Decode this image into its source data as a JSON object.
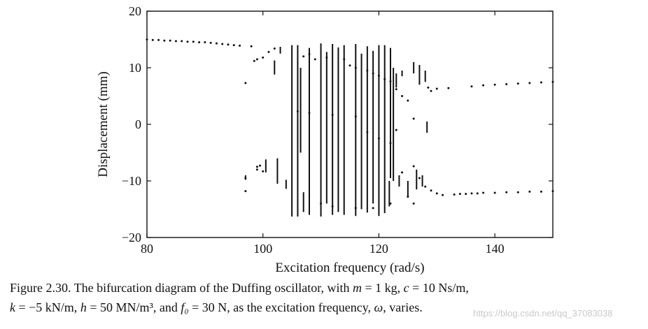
{
  "chart_data": {
    "type": "scatter",
    "title": "",
    "xlabel": "Excitation frequency (rad/s)",
    "ylabel": "Displacement (mm)",
    "xlim": [
      80,
      150
    ],
    "ylim": [
      -20,
      20
    ],
    "x_ticks": [
      "80",
      "100",
      "120",
      "140"
    ],
    "x_tick_values": [
      80,
      100,
      120,
      140
    ],
    "y_ticks": [
      "20",
      "10",
      "0",
      "−10",
      "−20"
    ],
    "y_tick_values": [
      20,
      10,
      0,
      -10,
      -20
    ],
    "grid": false,
    "legend": "none",
    "marker_color": "#111111",
    "series": [
      {
        "name": "",
        "points": [
          [
            80,
            15.0
          ],
          [
            81,
            14.9
          ],
          [
            82,
            14.9
          ],
          [
            83,
            14.8
          ],
          [
            84,
            14.8
          ],
          [
            85,
            14.7
          ],
          [
            86,
            14.7
          ],
          [
            87,
            14.6
          ],
          [
            88,
            14.6
          ],
          [
            89,
            14.5
          ],
          [
            90,
            14.5
          ],
          [
            91,
            14.4
          ],
          [
            92,
            14.3
          ],
          [
            93,
            14.2
          ],
          [
            94,
            14.1
          ],
          [
            95,
            14.0
          ],
          [
            96,
            13.9
          ],
          [
            97,
            7.3
          ],
          [
            97,
            -9.5
          ],
          [
            97,
            -11.8
          ],
          [
            98,
            13.8
          ],
          [
            98.5,
            11.2
          ],
          [
            99,
            11.5
          ],
          [
            99,
            -7.5
          ],
          [
            99,
            -8.0
          ],
          [
            99.5,
            -7.3
          ],
          [
            100,
            -8.3
          ],
          [
            100,
            11.8
          ],
          [
            101,
            12.8
          ],
          [
            102,
            13.4
          ],
          [
            107,
            12.0
          ],
          [
            108,
            12.4
          ],
          [
            109,
            11.5
          ],
          [
            111,
            11.8
          ],
          [
            114,
            11.5
          ],
          [
            115,
            10.4
          ],
          [
            116,
            10.0
          ],
          [
            118,
            9.5
          ],
          [
            119,
            9.0
          ],
          [
            120,
            8.6
          ],
          [
            121,
            8.0
          ],
          [
            122,
            7.6
          ],
          [
            123,
            6.2
          ],
          [
            124,
            5.0
          ],
          [
            125,
            4.2
          ],
          [
            110,
            -14.0
          ],
          [
            112,
            -14.5
          ],
          [
            116,
            -14.8
          ],
          [
            119,
            -14.8
          ],
          [
            122,
            -14.0
          ],
          [
            124,
            -8.5
          ],
          [
            125,
            -12.8
          ],
          [
            106,
            2.3
          ],
          [
            108,
            2.0
          ],
          [
            112,
            1.7
          ],
          [
            116,
            1.4
          ],
          [
            118,
            -1.4
          ],
          [
            120,
            -2.5
          ],
          [
            122,
            -3.3
          ],
          [
            123,
            -1.0
          ],
          [
            126,
            -7.4
          ],
          [
            127,
            -9.5
          ],
          [
            126,
            1.0
          ],
          [
            126,
            -14.0
          ],
          [
            128.5,
            6.5
          ],
          [
            129,
            5.9
          ],
          [
            130,
            6.3
          ],
          [
            132,
            6.4
          ],
          [
            128,
            -11.0
          ],
          [
            129,
            -11.7
          ],
          [
            130,
            -12.2
          ],
          [
            136,
            6.7
          ],
          [
            138,
            6.9
          ],
          [
            140,
            7.0
          ],
          [
            142,
            7.1
          ],
          [
            144,
            7.2
          ],
          [
            146,
            7.3
          ],
          [
            148,
            7.4
          ],
          [
            150,
            7.5
          ],
          [
            131,
            -12.5
          ],
          [
            133,
            -12.4
          ],
          [
            134,
            -12.3
          ],
          [
            135,
            -12.3
          ],
          [
            136,
            -12.2
          ],
          [
            137,
            -12.2
          ],
          [
            138,
            -12.1
          ],
          [
            140,
            -12.1
          ],
          [
            142,
            -12.0
          ],
          [
            144,
            -12.0
          ],
          [
            146,
            -11.9
          ],
          [
            148,
            -11.9
          ],
          [
            150,
            -11.8
          ]
        ],
        "segments": [
          [
            97,
            -9.0,
            -9.8
          ],
          [
            100.5,
            -6.2,
            -8.5
          ],
          [
            102,
            8.8,
            11.3
          ],
          [
            102.5,
            -6.0,
            -10.5
          ],
          [
            103,
            13.7,
            12.5
          ],
          [
            104,
            -9.8,
            -11.4
          ],
          [
            105,
            -16.3,
            14.0
          ],
          [
            106,
            -16.3,
            14.0
          ],
          [
            106.5,
            -5.0,
            10.0
          ],
          [
            107,
            -12.0,
            -15.5
          ],
          [
            108,
            -16.0,
            13.5
          ],
          [
            110,
            -16.3,
            14.3
          ],
          [
            111,
            -14.0,
            12.8
          ],
          [
            112,
            -16.0,
            14.2
          ],
          [
            113,
            -15.5,
            13.6
          ],
          [
            114,
            -16.0,
            14.0
          ],
          [
            116,
            -16.2,
            14.2
          ],
          [
            117,
            -15.0,
            12.5
          ],
          [
            118,
            -15.6,
            13.8
          ],
          [
            119,
            -14.0,
            13.0
          ],
          [
            120,
            -16.2,
            14.0
          ],
          [
            121,
            -15.7,
            14.0
          ],
          [
            122,
            -9.5,
            13.5
          ],
          [
            121.8,
            -14.5,
            -10.0
          ],
          [
            122.5,
            -10.0,
            10.0
          ],
          [
            123,
            6.5,
            9.0
          ],
          [
            123.5,
            -9.0,
            -11.0
          ],
          [
            124,
            8.5,
            9.5
          ],
          [
            125,
            -10.0,
            -12.8
          ],
          [
            126,
            9.0,
            11.0
          ],
          [
            126.5,
            -8.0,
            -11.5
          ],
          [
            127,
            7.0,
            10.5
          ],
          [
            127.5,
            -9.0,
            -11.0
          ],
          [
            128,
            7.5,
            9.5
          ],
          [
            128.3,
            0.5,
            -1.5
          ]
        ]
      }
    ]
  },
  "figure_caption": {
    "line1_parts": [
      {
        "t": "Figure  2.30. The bifurcation diagram of the Duffing oscillator, with ",
        "i": false
      },
      {
        "t": "m",
        "i": true
      },
      {
        "t": " = 1 kg, ",
        "i": false
      },
      {
        "t": "c",
        "i": true
      },
      {
        "t": " = 10 Ns/m,",
        "i": false
      }
    ],
    "line2_parts": [
      {
        "t": "k",
        "i": true
      },
      {
        "t": " = −5 kN/m, ",
        "i": false
      },
      {
        "t": "h",
        "i": true
      },
      {
        "t": " = 50 MN/m³, and  ",
        "i": false
      },
      {
        "t": "f₀",
        "i": true
      },
      {
        "t": " = 30 N, as the excitation frequency, ",
        "i": false
      },
      {
        "t": "ω",
        "i": true
      },
      {
        "t": ", varies.",
        "i": false
      }
    ]
  },
  "watermark": {
    "text": "https://blog.csdn.net/qq_37083038"
  }
}
